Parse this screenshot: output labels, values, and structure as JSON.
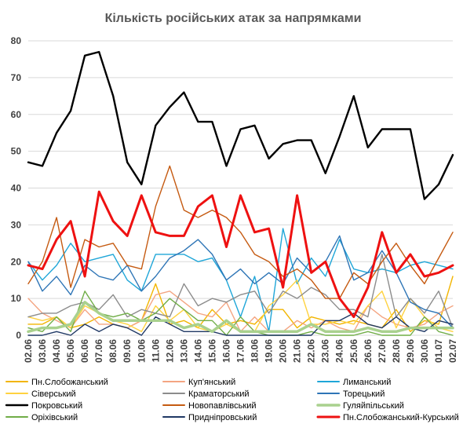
{
  "chart_data": {
    "type": "line",
    "title": "Кількість російських атак за напрямками",
    "xlabel": "",
    "ylabel": "",
    "ylim": [
      0,
      80
    ],
    "yticks": [
      0,
      10,
      20,
      30,
      40,
      50,
      60,
      70,
      80
    ],
    "grid": true,
    "legend_position": "bottom",
    "x": [
      "02.06",
      "03.06",
      "04.06",
      "05.06",
      "06.06",
      "07.06",
      "08.06",
      "09.06",
      "10.06",
      "11.06",
      "12.06",
      "13.06",
      "14.06",
      "15.06",
      "16.06",
      "17.06",
      "18.06",
      "19.06",
      "20.06",
      "21.06",
      "22.06",
      "23.06",
      "24.06",
      "25.06",
      "26.06",
      "27.06",
      "28.06",
      "29.06",
      "30.06",
      "01.07",
      "02.07"
    ],
    "series": [
      {
        "name": "Пн.Слобожанський",
        "color": "#f2b500",
        "width": 1.4,
        "values": [
          3,
          3,
          5,
          2,
          3,
          5,
          3,
          2,
          4,
          14,
          3,
          4,
          2,
          7,
          3,
          4,
          3,
          7,
          7,
          2,
          5,
          4,
          3,
          4,
          3,
          2,
          7,
          1,
          4,
          3,
          16
        ]
      },
      {
        "name": "Куп'янський",
        "color": "#f4a582",
        "width": 1.4,
        "values": [
          10,
          6,
          4,
          2,
          7,
          3,
          3,
          2,
          4,
          11,
          12,
          9,
          6,
          5,
          9,
          1,
          5,
          1,
          1,
          4,
          2,
          4,
          2,
          1,
          8,
          5,
          3,
          2,
          3,
          6,
          8
        ]
      },
      {
        "name": "Лиманський",
        "color": "#1fa6d8",
        "width": 1.4,
        "values": [
          20,
          15,
          19,
          25,
          20,
          21,
          22,
          15,
          12,
          22,
          22,
          22,
          20,
          21,
          15,
          5,
          16,
          1,
          29,
          14,
          21,
          16,
          26,
          18,
          17,
          18,
          17,
          19,
          20,
          19,
          18
        ]
      },
      {
        "name": "Сіверський",
        "color": "#ffd23f",
        "width": 1.4,
        "values": [
          5,
          4,
          5,
          2,
          8,
          6,
          4,
          3,
          1,
          8,
          4,
          7,
          2,
          1,
          3,
          1,
          1,
          8,
          11,
          15,
          3,
          3,
          4,
          3,
          8,
          12,
          2,
          10,
          5,
          2,
          1
        ]
      },
      {
        "name": "Краматорський",
        "color": "#8c8c8c",
        "width": 1.4,
        "values": [
          5,
          6,
          6,
          8,
          9,
          7,
          11,
          5,
          7,
          6,
          5,
          14,
          8,
          10,
          9,
          11,
          12,
          6,
          12,
          10,
          13,
          11,
          7,
          7,
          5,
          22,
          5,
          10,
          6,
          12,
          2
        ]
      },
      {
        "name": "Торецький",
        "color": "#2e75b6",
        "width": 1.4,
        "values": [
          20,
          12,
          16,
          11,
          19,
          16,
          15,
          19,
          12,
          16,
          21,
          23,
          26,
          22,
          15,
          18,
          14,
          17,
          14,
          21,
          17,
          20,
          27,
          15,
          17,
          23,
          17,
          9,
          7,
          6,
          2
        ]
      },
      {
        "name": "Покровський",
        "color": "#000000",
        "width": 2.4,
        "values": [
          47,
          46,
          55,
          61,
          76,
          77,
          65,
          47,
          41,
          57,
          62,
          66,
          58,
          58,
          46,
          56,
          57,
          48,
          52,
          53,
          53,
          44,
          54,
          65,
          51,
          56,
          56,
          56,
          37,
          41,
          49
        ]
      },
      {
        "name": "Новопавлівський",
        "color": "#c55a11",
        "width": 1.4,
        "values": [
          14,
          20,
          32,
          13,
          26,
          24,
          25,
          19,
          18,
          35,
          46,
          34,
          32,
          34,
          32,
          28,
          22,
          20,
          16,
          18,
          15,
          10,
          10,
          17,
          14,
          20,
          25,
          19,
          14,
          21,
          28
        ]
      },
      {
        "name": "Гуляйпільський",
        "color": "#a9d18e",
        "width": 3.5,
        "values": [
          1,
          2,
          2,
          3,
          9,
          6,
          4,
          4,
          4,
          4,
          4,
          2,
          3,
          1,
          4,
          1,
          1,
          1,
          1,
          1,
          3,
          1,
          1,
          1,
          2,
          1,
          1,
          2,
          2,
          2,
          2
        ]
      },
      {
        "name": "Оріхівський",
        "color": "#70ad47",
        "width": 1.4,
        "values": [
          2,
          1,
          5,
          1,
          12,
          6,
          5,
          6,
          4,
          6,
          10,
          7,
          4,
          4,
          0,
          5,
          1,
          0,
          0,
          0,
          1,
          0,
          0,
          0,
          1,
          0,
          0,
          0,
          5,
          1,
          0
        ]
      },
      {
        "name": "Придніпровський",
        "color": "#1f3864",
        "width": 1.4,
        "values": [
          0,
          0,
          1,
          0,
          3,
          1,
          3,
          2,
          0,
          5,
          3,
          1,
          1,
          1,
          0,
          0,
          0,
          0,
          0,
          0,
          0,
          4,
          4,
          6,
          3,
          2,
          5,
          2,
          1,
          4,
          3
        ]
      },
      {
        "name": "Пн.Слобожанський-Курський",
        "color": "#ee1111",
        "width": 3.0,
        "values": [
          19,
          18,
          26,
          31,
          16,
          39,
          31,
          27,
          38,
          28,
          27,
          27,
          35,
          38,
          24,
          38,
          28,
          29,
          13,
          38,
          17,
          20,
          10,
          5,
          13,
          28,
          17,
          22,
          16,
          17,
          19
        ]
      }
    ]
  }
}
